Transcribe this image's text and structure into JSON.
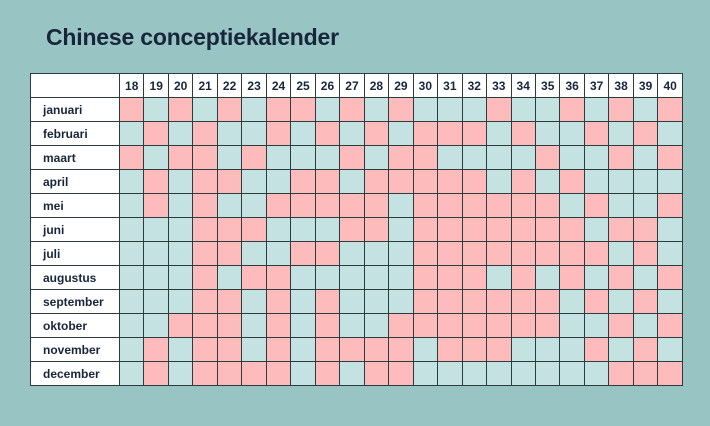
{
  "title": "Chinese conceptiekalender",
  "colors": {
    "P": "#fdbbbc",
    "B": "#c4e2e2"
  },
  "columns": [
    "18",
    "19",
    "20",
    "21",
    "22",
    "23",
    "24",
    "25",
    "26",
    "27",
    "28",
    "29",
    "30",
    "31",
    "32",
    "33",
    "34",
    "35",
    "36",
    "37",
    "38",
    "39",
    "40"
  ],
  "rows": [
    {
      "month": "januari",
      "cells": "PBPBPBPPBPBPBBBPBBPBPBP"
    },
    {
      "month": "februari",
      "cells": "BPBPBBPBPBPBPPPBPBBPBPB"
    },
    {
      "month": "maart",
      "cells": "PBPPBPBBBPBPPBBBBPBBPBP"
    },
    {
      "month": "april",
      "cells": "BPBPPBBPPBPPPPPBPBPBBBB"
    },
    {
      "month": "mei",
      "cells": "BPBPBBPPPPPBPPPPPPBPBBP"
    },
    {
      "month": "juni",
      "cells": "BBBPPPBBBPPBPPPPPPPBPPB"
    },
    {
      "month": "juli",
      "cells": "BBBPPBBPPBBBPPPPPPPPBPB"
    },
    {
      "month": "augustus",
      "cells": "BBBPBPPBBBBBPPPBPBPBPBP"
    },
    {
      "month": "september",
      "cells": "BBBPPBPBPBBBPPPPPPBPBPB"
    },
    {
      "month": "oktober",
      "cells": "BBPPPBPBPBBPPPPPPPBBPBP"
    },
    {
      "month": "november",
      "cells": "BPBPPBPBPPPPBPPPBBBPBPB"
    },
    {
      "month": "december",
      "cells": "BPBPPPPBPBPPBBBBBBBBPPP"
    }
  ]
}
